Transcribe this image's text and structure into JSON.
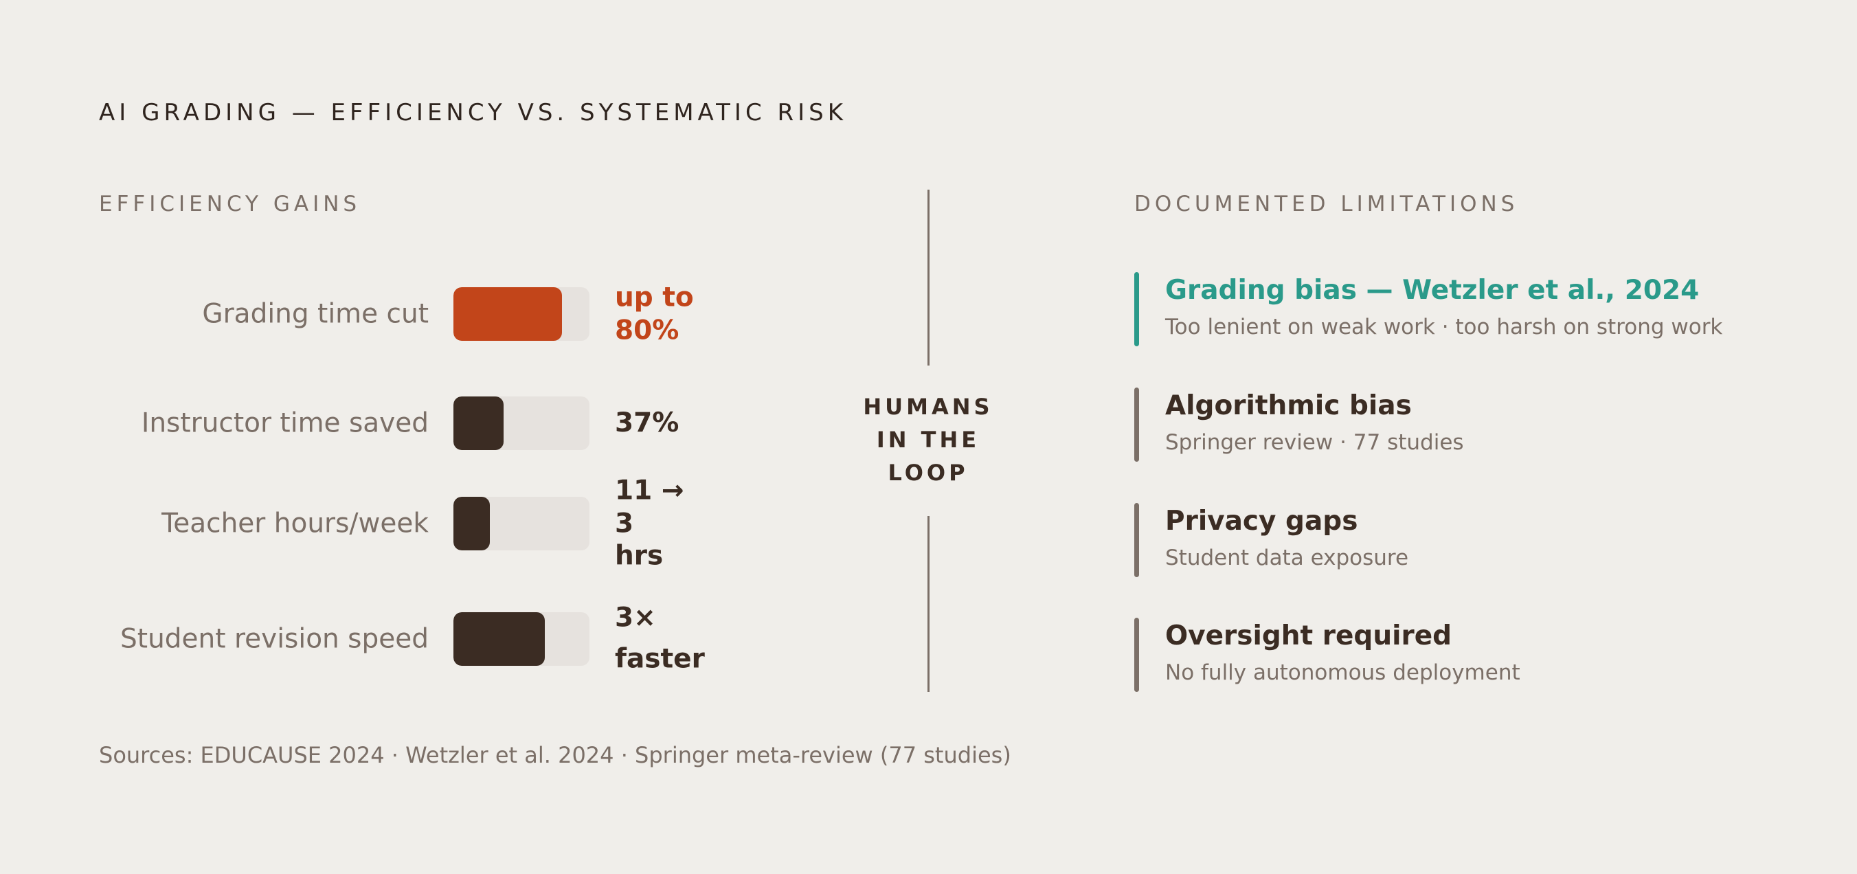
{
  "title": "AI GRADING — EFFICIENCY VS. SYSTEMATIC RISK",
  "efficiency": {
    "heading": "EFFICIENCY GAINS",
    "rows": [
      {
        "label": "Grading time cut",
        "value": "up to 80%",
        "fill_fraction": 0.8,
        "accent": true
      },
      {
        "label": "Instructor time saved",
        "value": "37%",
        "fill_fraction": 0.37,
        "accent": false
      },
      {
        "label": "Teacher hours/week",
        "value": "11 → 3 hrs",
        "fill_fraction": 0.27,
        "accent": false
      },
      {
        "label": "Student revision speed",
        "value": "3× faster",
        "fill_fraction": 0.67,
        "accent": false
      }
    ]
  },
  "divider": {
    "label_lines": [
      "HUMANS",
      "IN THE",
      "LOOP"
    ]
  },
  "limitations": {
    "heading": "DOCUMENTED LIMITATIONS",
    "items": [
      {
        "title": "Grading bias — Wetzler et al., 2024",
        "subtitle": "Too lenient on weak work · too harsh on strong work",
        "highlight": true
      },
      {
        "title": "Algorithmic bias",
        "subtitle": "Springer review · 77 studies",
        "highlight": false
      },
      {
        "title": "Privacy gaps",
        "subtitle": "Student data exposure",
        "highlight": false
      },
      {
        "title": "Oversight required",
        "subtitle": "No fully autonomous deployment",
        "highlight": false
      }
    ]
  },
  "sources": "Sources: EDUCAUSE 2024 · Wetzler et al. 2024 · Springer meta-review (77 studies)",
  "colors": {
    "background": "#f0eeea",
    "accent_orange": "#c2451a",
    "accent_teal": "#2a9a8a",
    "dark": "#3b2c23",
    "muted": "#7b6f67",
    "track": "#e6e2de"
  }
}
